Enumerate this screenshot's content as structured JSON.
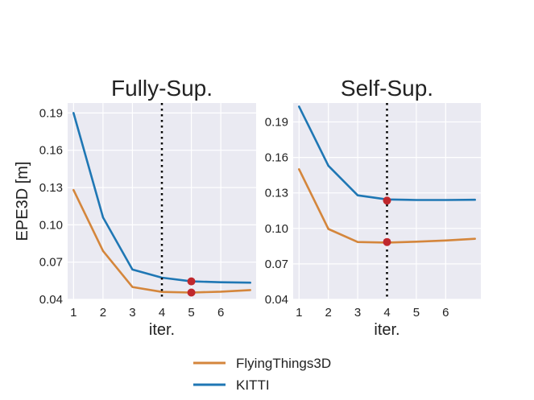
{
  "chart_data": [
    {
      "type": "line",
      "title": "Fully-Sup.",
      "xlabel": "iter.",
      "ylabel": "EPE3D [m]",
      "x": [
        1,
        2,
        3,
        4,
        5,
        6,
        7
      ],
      "xticks": [
        "1",
        "2",
        "3",
        "4",
        "5",
        "6"
      ],
      "xlim": [
        0.8,
        7.2
      ],
      "yticks": [
        "0.04",
        "0.07",
        "0.10",
        "0.13",
        "0.16",
        "0.19"
      ],
      "ylim": [
        0.04,
        0.198
      ],
      "grid": true,
      "vline_x": 4,
      "series": [
        {
          "name": "FlyingThings3D",
          "color": "#d4863c",
          "values": [
            0.128,
            0.079,
            0.05,
            0.046,
            0.0455,
            0.0462,
            0.0475
          ]
        },
        {
          "name": "KITTI",
          "color": "#1f77b4",
          "values": [
            0.19,
            0.106,
            0.064,
            0.0575,
            0.0545,
            0.0538,
            0.0535
          ]
        }
      ],
      "markers": [
        {
          "x": 5,
          "y": 0.0545,
          "color": "#c0282d"
        },
        {
          "x": 5,
          "y": 0.0455,
          "color": "#c0282d"
        }
      ]
    },
    {
      "type": "line",
      "title": "Self-Sup.",
      "xlabel": "iter.",
      "ylabel": "",
      "x": [
        1,
        2,
        3,
        4,
        5,
        6,
        7
      ],
      "xticks": [
        "1",
        "2",
        "3",
        "4",
        "5",
        "6"
      ],
      "xlim": [
        0.8,
        7.2
      ],
      "yticks": [
        "0.04",
        "0.07",
        "0.10",
        "0.13",
        "0.16",
        "0.19"
      ],
      "ylim": [
        0.04,
        0.206
      ],
      "grid": true,
      "vline_x": 4,
      "series": [
        {
          "name": "FlyingThings3D",
          "color": "#d4863c",
          "values": [
            0.15,
            0.0995,
            0.0885,
            0.088,
            0.0888,
            0.0898,
            0.0912
          ]
        },
        {
          "name": "KITTI",
          "color": "#1f77b4",
          "values": [
            0.203,
            0.153,
            0.128,
            0.1245,
            0.124,
            0.124,
            0.1242
          ]
        }
      ],
      "markers": [
        {
          "x": 4,
          "y": 0.1235,
          "color": "#c0282d"
        },
        {
          "x": 4,
          "y": 0.0885,
          "color": "#c0282d"
        }
      ]
    }
  ],
  "legend": {
    "placement": "bottom-center",
    "items": [
      {
        "label": "FlyingThings3D",
        "color": "#d4863c"
      },
      {
        "label": "KITTI",
        "color": "#1f77b4"
      }
    ]
  }
}
